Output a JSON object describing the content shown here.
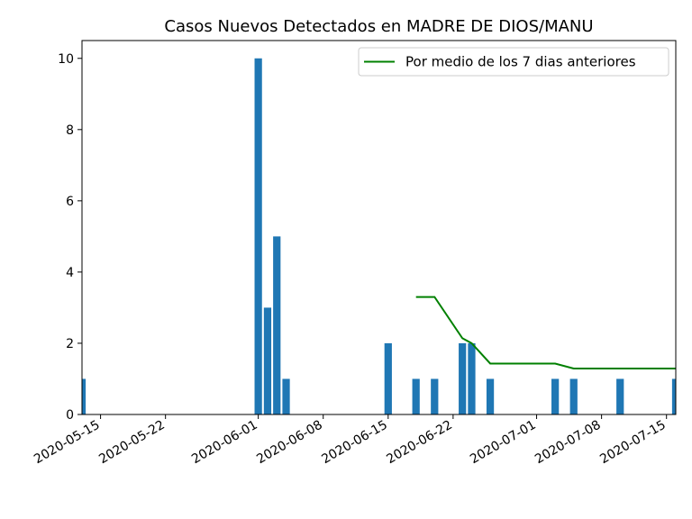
{
  "chart_data": {
    "type": "bar",
    "title": "Casos Nuevos Detectados en MADRE DE DIOS/MANU",
    "xlabel": "",
    "ylabel": "",
    "xlim": [
      "2020-05-13",
      "2020-07-16"
    ],
    "ylim": [
      0,
      10.5
    ],
    "yticks": [
      0,
      2,
      4,
      6,
      8,
      10
    ],
    "xticks": [
      "2020-05-15",
      "2020-05-22",
      "2020-06-01",
      "2020-06-08",
      "2020-06-15",
      "2020-06-22",
      "2020-07-01",
      "2020-07-08",
      "2020-07-15"
    ],
    "grid": false,
    "legend_position": "top-right",
    "bar_color": "#1f77b4",
    "line_color": "#008000",
    "bars": [
      {
        "date": "2020-05-13",
        "value": 1
      },
      {
        "date": "2020-06-01",
        "value": 10
      },
      {
        "date": "2020-06-02",
        "value": 3
      },
      {
        "date": "2020-06-03",
        "value": 5
      },
      {
        "date": "2020-06-04",
        "value": 1
      },
      {
        "date": "2020-06-15",
        "value": 2
      },
      {
        "date": "2020-06-18",
        "value": 1
      },
      {
        "date": "2020-06-20",
        "value": 1
      },
      {
        "date": "2020-06-23",
        "value": 2
      },
      {
        "date": "2020-06-24",
        "value": 2
      },
      {
        "date": "2020-06-26",
        "value": 1
      },
      {
        "date": "2020-07-03",
        "value": 1
      },
      {
        "date": "2020-07-05",
        "value": 1
      },
      {
        "date": "2020-07-10",
        "value": 1
      },
      {
        "date": "2020-07-16",
        "value": 1
      }
    ],
    "series": [
      {
        "name": "Por medio de los 7 dias anteriores",
        "points": [
          {
            "date": "2020-06-18",
            "value": 3.3
          },
          {
            "date": "2020-06-20",
            "value": 3.3
          },
          {
            "date": "2020-06-23",
            "value": 2.14
          },
          {
            "date": "2020-06-24",
            "value": 2.0
          },
          {
            "date": "2020-06-26",
            "value": 1.43
          },
          {
            "date": "2020-07-03",
            "value": 1.43
          },
          {
            "date": "2020-07-05",
            "value": 1.29
          },
          {
            "date": "2020-07-10",
            "value": 1.29
          },
          {
            "date": "2020-07-16",
            "value": 1.29
          }
        ]
      }
    ]
  }
}
